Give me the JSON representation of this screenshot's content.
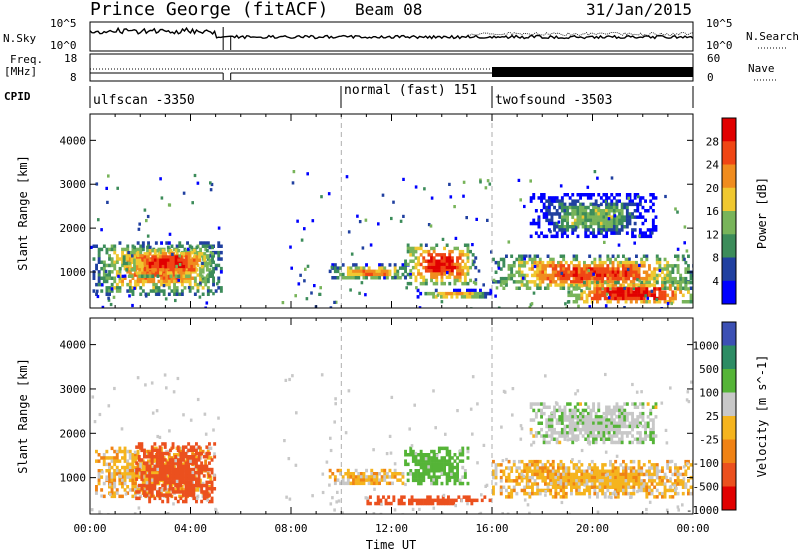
{
  "header": {
    "station": "Prince George (fitACF)",
    "beam": "Beam 08",
    "date": "31/Jan/2015"
  },
  "top_panels": {
    "nsky_label": "N.Sky",
    "nsky_ticks": [
      "10^5",
      "10^0"
    ],
    "nsearch_label": "N.Search",
    "nsearch_ticks": [
      "10^5",
      "10^0"
    ],
    "freq_label_line1": "Freq.",
    "freq_label_line2": "[MHz]",
    "freq_ticks": [
      "18",
      "8"
    ],
    "nave_label": "Nave",
    "nave_ticks": [
      "60",
      "0"
    ],
    "cpid_label": "CPID",
    "cpid_segments": [
      {
        "label": "ulfscan -3350",
        "start_hour": 0
      },
      {
        "label": "normal (fast) 151",
        "start_hour": 10
      },
      {
        "label": "twofsound -3503",
        "start_hour": 16
      }
    ]
  },
  "chart_data": [
    {
      "type": "heatmap",
      "name": "power",
      "ylabel": "Slant Range [km]",
      "xlabel": "Time UT",
      "xlim": [
        0,
        24
      ],
      "ylim": [
        180,
        4600
      ],
      "x_ticks": [
        "00:00",
        "04:00",
        "08:00",
        "12:00",
        "16:00",
        "20:00",
        "00:00"
      ],
      "y_ticks": [
        1000,
        2000,
        3000,
        4000
      ],
      "colorbar": {
        "label": "Power [dB]",
        "ticks": [
          "28",
          "24",
          "20",
          "16",
          "12",
          "8",
          "4"
        ],
        "range": [
          0,
          30
        ]
      },
      "colors": [
        "#0000ff",
        "#2040a0",
        "#3c8c5a",
        "#78b45a",
        "#f0c830",
        "#f08c1e",
        "#f04614",
        "#e10000"
      ],
      "mode_changes_hour": [
        10,
        16
      ],
      "data_gap_hours": [
        5.3,
        5.6
      ],
      "echo_regions": [
        {
          "x": [
            0.1,
            5.2
          ],
          "y": [
            500,
            1700
          ],
          "level": 24
        },
        {
          "x": [
            1.3,
            4.9
          ],
          "y": [
            900,
            1600
          ],
          "level": 28
        },
        {
          "x": [
            9.5,
            12.8
          ],
          "y": [
            850,
            1200
          ],
          "level": 22
        },
        {
          "x": [
            12.5,
            15.3
          ],
          "y": [
            750,
            1650
          ],
          "level": 28
        },
        {
          "x": [
            13.0,
            16.0
          ],
          "y": [
            420,
            620
          ],
          "level": 20
        },
        {
          "x": [
            16.0,
            24.0
          ],
          "y": [
            600,
            1400
          ],
          "level": 26
        },
        {
          "x": [
            19.0,
            24.0
          ],
          "y": [
            300,
            800
          ],
          "level": 30
        },
        {
          "x": [
            17.5,
            22.5
          ],
          "y": [
            1800,
            2800
          ],
          "level": 14
        }
      ]
    },
    {
      "type": "heatmap",
      "name": "velocity",
      "ylabel": "Slant Range [km]",
      "xlabel": "Time UT",
      "xlim": [
        0,
        24
      ],
      "ylim": [
        180,
        4600
      ],
      "x_ticks": [
        "00:00",
        "04:00",
        "08:00",
        "12:00",
        "16:00",
        "20:00",
        "00:00"
      ],
      "y_ticks": [
        1000,
        2000,
        3000,
        4000
      ],
      "colorbar": {
        "label": "Velocity [m s^-1]",
        "ticks": [
          "1000",
          "500",
          "100",
          "25",
          "-25",
          "-100",
          "-500",
          "-1000"
        ]
      },
      "colors": [
        "#3c50b4",
        "#2d8c64",
        "#55b437",
        "#c8c8c8",
        "#f5b41e",
        "#f08214",
        "#eb501e",
        "#e10000"
      ],
      "mode_changes_hour": [
        10,
        16
      ],
      "data_gap_hours": [
        5.3,
        5.6
      ],
      "echo_regions": [
        {
          "x": [
            0.2,
            4.8
          ],
          "y": [
            550,
            1700
          ],
          "level": 0
        },
        {
          "x": [
            1.8,
            5.0
          ],
          "y": [
            500,
            1800
          ],
          "level": -300
        },
        {
          "x": [
            9.5,
            12.5
          ],
          "y": [
            850,
            1200
          ],
          "level": 0
        },
        {
          "x": [
            12.5,
            15.0
          ],
          "y": [
            850,
            1700
          ],
          "level": 150
        },
        {
          "x": [
            11.0,
            16.0
          ],
          "y": [
            420,
            600
          ],
          "level": -200
        },
        {
          "x": [
            16.0,
            24.0
          ],
          "y": [
            600,
            1400
          ],
          "level": 0
        },
        {
          "x": [
            17.5,
            22.5
          ],
          "y": [
            1800,
            2700
          ],
          "level": 80
        }
      ]
    }
  ]
}
